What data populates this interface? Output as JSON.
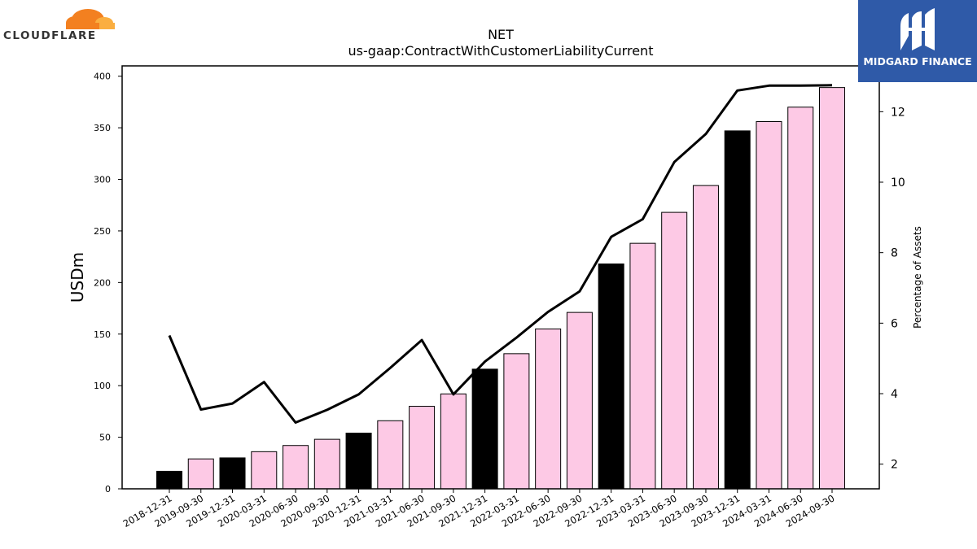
{
  "logos": {
    "left_brand": "CLOUDFLARE",
    "right_brand": "MIDGARD FINANCE",
    "cloudflare_orange": "#f38020",
    "cloudflare_light_orange": "#faae40",
    "midgard_blue": "#2f5aa8"
  },
  "chart_data": {
    "type": "bar",
    "title": "NET",
    "subtitle": "us-gaap:ContractWithCustomerLiabilityCurrent",
    "ylabel": "USDm",
    "y2label": "Percentage of Assets",
    "ylim": [
      0,
      410
    ],
    "y2lim": [
      1.3,
      13.3
    ],
    "yticks": [
      0,
      50,
      100,
      150,
      200,
      250,
      300,
      350,
      400
    ],
    "y2ticks": [
      2,
      4,
      6,
      8,
      10,
      12
    ],
    "categories": [
      "2018-12-31",
      "2019-09-30",
      "2019-12-31",
      "2020-03-31",
      "2020-06-30",
      "2020-09-30",
      "2020-12-31",
      "2021-03-31",
      "2021-06-30",
      "2021-09-30",
      "2021-12-31",
      "2022-03-31",
      "2022-06-30",
      "2022-09-30",
      "2022-12-31",
      "2023-03-31",
      "2023-06-30",
      "2023-09-30",
      "2023-12-31",
      "2024-03-31",
      "2024-06-30",
      "2024-09-30"
    ],
    "series": [
      {
        "type": "bar",
        "values": [
          17,
          29,
          30,
          36,
          42,
          48,
          54,
          66,
          80,
          92,
          116,
          131,
          155,
          171,
          218,
          238,
          268,
          294,
          347,
          356,
          370,
          389
        ],
        "colors": [
          "#000000",
          "#fdc9e5",
          "#000000",
          "#fdc9e5",
          "#fdc9e5",
          "#fdc9e5",
          "#000000",
          "#fdc9e5",
          "#fdc9e5",
          "#fdc9e5",
          "#000000",
          "#fdc9e5",
          "#fdc9e5",
          "#fdc9e5",
          "#000000",
          "#fdc9e5",
          "#fdc9e5",
          "#fdc9e5",
          "#000000",
          "#fdc9e5",
          "#fdc9e5",
          "#fdc9e5"
        ]
      },
      {
        "type": "line",
        "axis": "right",
        "color": "#000000",
        "values": [
          5.65,
          3.55,
          3.72,
          4.33,
          3.18,
          3.54,
          3.98,
          4.73,
          5.52,
          3.98,
          4.91,
          5.59,
          6.32,
          6.9,
          8.45,
          8.95,
          10.57,
          11.37,
          12.6,
          12.74,
          12.74,
          12.75
        ]
      }
    ],
    "grid": false,
    "legend": "none"
  }
}
